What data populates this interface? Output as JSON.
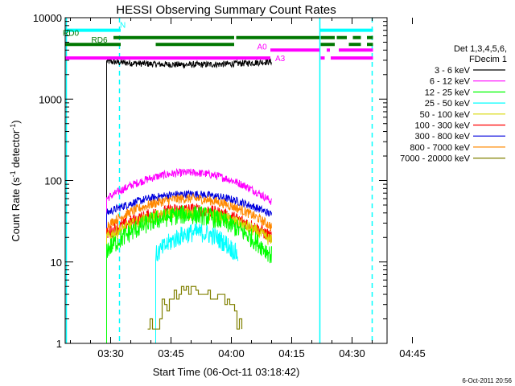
{
  "chart_data": {
    "type": "line",
    "title": "HESSI Observing Summary Count Rates",
    "xlabel": "Start Time (06-Oct-11 03:18:42)",
    "ylabel_main": "Count Rate (s",
    "ylabel_sup1": "-1",
    "ylabel_mid": " detector",
    "ylabel_sup2": "-1",
    "ylabel_end": ")",
    "yscale": "log",
    "ylim": [
      1,
      10000
    ],
    "xlim_minutes": [
      0,
      80
    ],
    "x_ticks": [
      "03:30",
      "03:45",
      "04:00",
      "04:15",
      "04:30",
      "04:45"
    ],
    "y_ticks": [
      "1",
      "10",
      "100",
      "1000",
      "10000"
    ],
    "legend": {
      "header1": "Det 1,3,4,5,6,",
      "header2": "FDecim 1",
      "placement": "right",
      "entries": [
        {
          "label": "3 - 6 keV",
          "color": "#000000"
        },
        {
          "label": "6 - 12 keV",
          "color": "#ff00ff"
        },
        {
          "label": "12 - 25 keV",
          "color": "#00ff00"
        },
        {
          "label": "25 - 50 keV",
          "color": "#00ffff"
        },
        {
          "label": "50 - 100 keV",
          "color": "#d8d800"
        },
        {
          "label": "100 - 300 keV",
          "color": "#ff0000"
        },
        {
          "label": "300 - 800 keV",
          "color": "#0000dd"
        },
        {
          "label": "800 - 7000 keV",
          "color": "#ff8800"
        },
        {
          "label": "7000 - 20000 keV",
          "color": "#808000"
        }
      ]
    },
    "flags": [
      {
        "label": "N",
        "color": "#00ffff",
        "y": 7000,
        "segments": [
          [
            0,
            13.8
          ],
          [
            63.2,
            76.5
          ]
        ]
      },
      {
        "label": "RD0",
        "color": "#007700",
        "y": 5700,
        "segments": [
          [
            12,
            42
          ],
          [
            42.5,
            63.2
          ],
          [
            63.5,
            67
          ],
          [
            67.5,
            70
          ],
          [
            71.5,
            73.5
          ],
          [
            75,
            76.5
          ]
        ]
      },
      {
        "label": "RD6",
        "color": "#007700",
        "y": 4700,
        "segments": [
          [
            0,
            13.8
          ],
          [
            22.5,
            42
          ],
          [
            63.5,
            67
          ],
          [
            70.5,
            73.5
          ],
          [
            75,
            76.5
          ]
        ]
      },
      {
        "label": "A0",
        "color": "#ff00ff",
        "y": 4000,
        "segments": [
          [
            51,
            63.2
          ],
          [
            65,
            65.8
          ],
          [
            68,
            76.5
          ]
        ]
      },
      {
        "label": "A3",
        "color": "#ff00ff",
        "y": 3200,
        "segments": [
          [
            0,
            51
          ],
          [
            63.5,
            64.5
          ],
          [
            66,
            76.5
          ]
        ]
      }
    ],
    "vertical_markers": [
      {
        "x": 13.5,
        "style": "dashed",
        "color": "#00ffff"
      },
      {
        "x": 63.3,
        "style": "solid",
        "color": "#00ffff"
      },
      {
        "x": 76.3,
        "style": "dashed",
        "color": "#00ffff"
      },
      {
        "x": 0.3,
        "style": "solid",
        "color": "#00ffff"
      }
    ],
    "series": [
      {
        "name": "3 - 6 keV",
        "color": "#000000",
        "start": 10.3,
        "end": 51.3,
        "edge_start": 2900,
        "peak": 2650,
        "edge_end": 2900,
        "noise": 0.04
      },
      {
        "name": "6 - 12 keV",
        "color": "#ff00ff",
        "start": 10.3,
        "end": 51.3,
        "edge_start": 60,
        "peak": 125,
        "edge_end": 55,
        "noise": 0.05
      },
      {
        "name": "300 - 800 keV",
        "color": "#0000dd",
        "start": 10.3,
        "end": 51.3,
        "edge_start": 40,
        "peak": 68,
        "edge_end": 38,
        "noise": 0.05
      },
      {
        "name": "800 - 7000 keV",
        "color": "#ff8800",
        "start": 10.3,
        "end": 51.3,
        "edge_start": 28,
        "peak": 60,
        "edge_end": 27,
        "noise": 0.06
      },
      {
        "name": "100 - 300 keV",
        "color": "#ff0000",
        "start": 10.3,
        "end": 51.3,
        "edge_start": 22,
        "peak": 44,
        "edge_end": 20,
        "noise": 0.08
      },
      {
        "name": "50 - 100 keV",
        "color": "#d8d800",
        "start": 10.3,
        "end": 51.3,
        "edge_start": 20,
        "peak": 40,
        "edge_end": 18,
        "noise": 0.08
      },
      {
        "name": "12 - 25 keV",
        "color": "#00ff00",
        "start": 10.3,
        "end": 51.3,
        "edge_start": 14,
        "peak": 38,
        "edge_end": 12,
        "noise": 0.12
      },
      {
        "name": "25 - 50 keV",
        "color": "#00ffff",
        "start": 22.5,
        "end": 43.0,
        "edge_start": 12,
        "peak": 23,
        "edge_end": 12,
        "noise": 0.12
      },
      {
        "name": "7000 - 20000 keV",
        "color": "#808000",
        "start": 20.5,
        "end": 44.5,
        "edge_start": 1,
        "peak": 4.5,
        "edge_end": 1,
        "noise": 0.0,
        "stepped": true
      }
    ]
  },
  "footer": {
    "timestamp": "6-Oct-2011 20:56"
  }
}
